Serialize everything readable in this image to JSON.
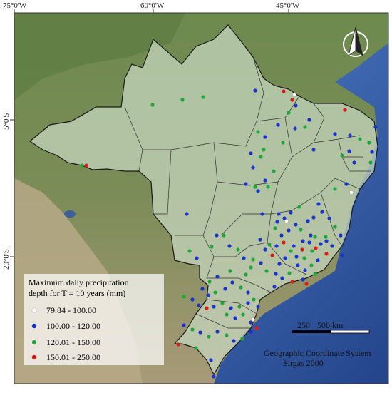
{
  "graticule": {
    "longitude_labels": [
      "75°0'W",
      "60°0'W",
      "45°0'W"
    ],
    "latitude_labels": [
      "5°0'S",
      "20°0'S"
    ]
  },
  "legend": {
    "title_line1": "Maximum daily precipitation",
    "title_line2": "depth for T = 10 years (mm)",
    "items": [
      {
        "label": "79.84 - 100.00",
        "color": "#ffffff"
      },
      {
        "label": "100.00 - 120.00",
        "color": "#1a33cc"
      },
      {
        "label": "120.01 - 150.00",
        "color": "#1fa83a"
      },
      {
        "label": "150.01 - 250.00",
        "color": "#e01a1a"
      }
    ]
  },
  "scale_bar": {
    "label_mid": "250",
    "label_end": "500 km"
  },
  "reference": {
    "line1": "Geographic Coordinate System",
    "line2": "Sirgas 2000"
  },
  "north_arrow": {
    "icon": "north-arrow-icon"
  }
}
